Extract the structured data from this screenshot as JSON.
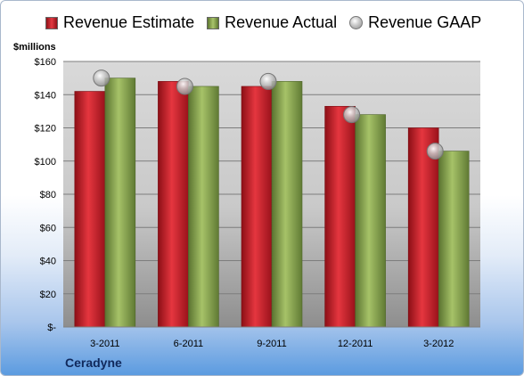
{
  "chart_data": {
    "type": "bar",
    "title": "",
    "ylabel": "$millions",
    "footer": "Ceradyne",
    "categories": [
      "3-2011",
      "6-2011",
      "9-2011",
      "12-2011",
      "3-2012"
    ],
    "series": [
      {
        "name": "Revenue Estimate",
        "kind": "bar",
        "color": "#cc1f2a",
        "values": [
          142,
          148,
          145,
          133,
          120
        ]
      },
      {
        "name": "Revenue Actual",
        "kind": "bar",
        "color": "#8aa84e",
        "values": [
          150,
          145,
          148,
          128,
          106
        ]
      },
      {
        "name": "Revenue GAAP",
        "kind": "marker",
        "color": "#b5b5b5",
        "values": [
          150,
          145,
          148,
          128,
          106
        ]
      }
    ],
    "ylim": [
      0,
      160
    ],
    "yticks": [
      0,
      20,
      40,
      60,
      80,
      100,
      120,
      140,
      160
    ],
    "ytick_labels": [
      "$-",
      "$20",
      "$40",
      "$60",
      "$80",
      "$100",
      "$120",
      "$140",
      "$160"
    ],
    "grid": true,
    "legend_position": "top"
  }
}
